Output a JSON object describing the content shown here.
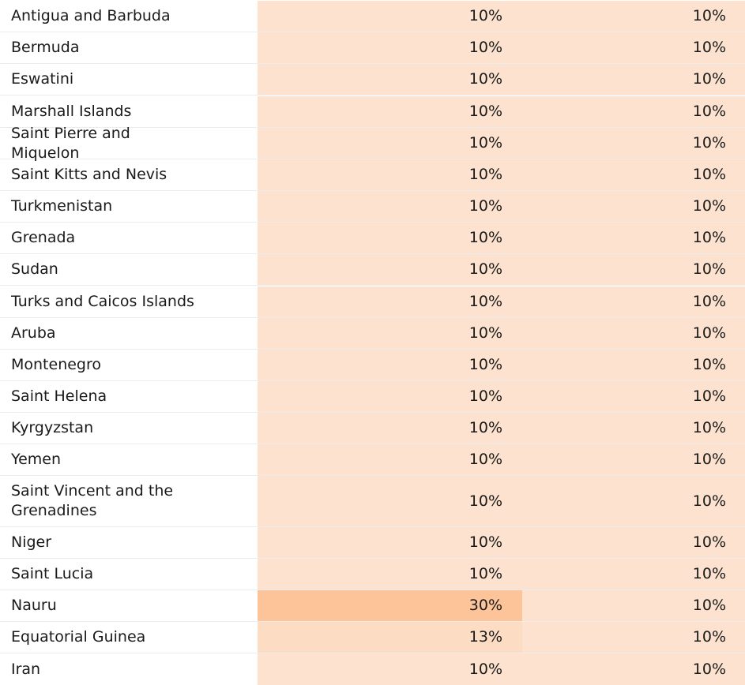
{
  "colors": {
    "cell_base": "#fde3cf",
    "cell_mid": "#fddcc4",
    "cell_high": "#fdc49a",
    "row_divider": "#ececec"
  },
  "rows": [
    {
      "country": "Antigua and Barbuda",
      "col1": "10%",
      "col2": "10%"
    },
    {
      "country": "Bermuda",
      "col1": "10%",
      "col2": "10%"
    },
    {
      "country": "Eswatini",
      "col1": "10%",
      "col2": "10%"
    },
    {
      "country": "Marshall Islands",
      "col1": "10%",
      "col2": "10%"
    },
    {
      "country": "Saint Pierre and Miquelon",
      "col1": "10%",
      "col2": "10%"
    },
    {
      "country": "Saint Kitts and Nevis",
      "col1": "10%",
      "col2": "10%"
    },
    {
      "country": "Turkmenistan",
      "col1": "10%",
      "col2": "10%"
    },
    {
      "country": "Grenada",
      "col1": "10%",
      "col2": "10%"
    },
    {
      "country": "Sudan",
      "col1": "10%",
      "col2": "10%"
    },
    {
      "country": "Turks and Caicos Islands",
      "col1": "10%",
      "col2": "10%"
    },
    {
      "country": "Aruba",
      "col1": "10%",
      "col2": "10%"
    },
    {
      "country": "Montenegro",
      "col1": "10%",
      "col2": "10%"
    },
    {
      "country": "Saint Helena",
      "col1": "10%",
      "col2": "10%"
    },
    {
      "country": "Kyrgyzstan",
      "col1": "10%",
      "col2": "10%"
    },
    {
      "country": "Yemen",
      "col1": "10%",
      "col2": "10%"
    },
    {
      "country": "Saint Vincent and the Grenadines",
      "col1": "10%",
      "col2": "10%"
    },
    {
      "country": "Niger",
      "col1": "10%",
      "col2": "10%"
    },
    {
      "country": "Saint Lucia",
      "col1": "10%",
      "col2": "10%"
    },
    {
      "country": "Nauru",
      "col1": "30%",
      "col2": "10%"
    },
    {
      "country": "Equatorial Guinea",
      "col1": "13%",
      "col2": "10%"
    },
    {
      "country": "Iran",
      "col1": "10%",
      "col2": "10%"
    }
  ]
}
